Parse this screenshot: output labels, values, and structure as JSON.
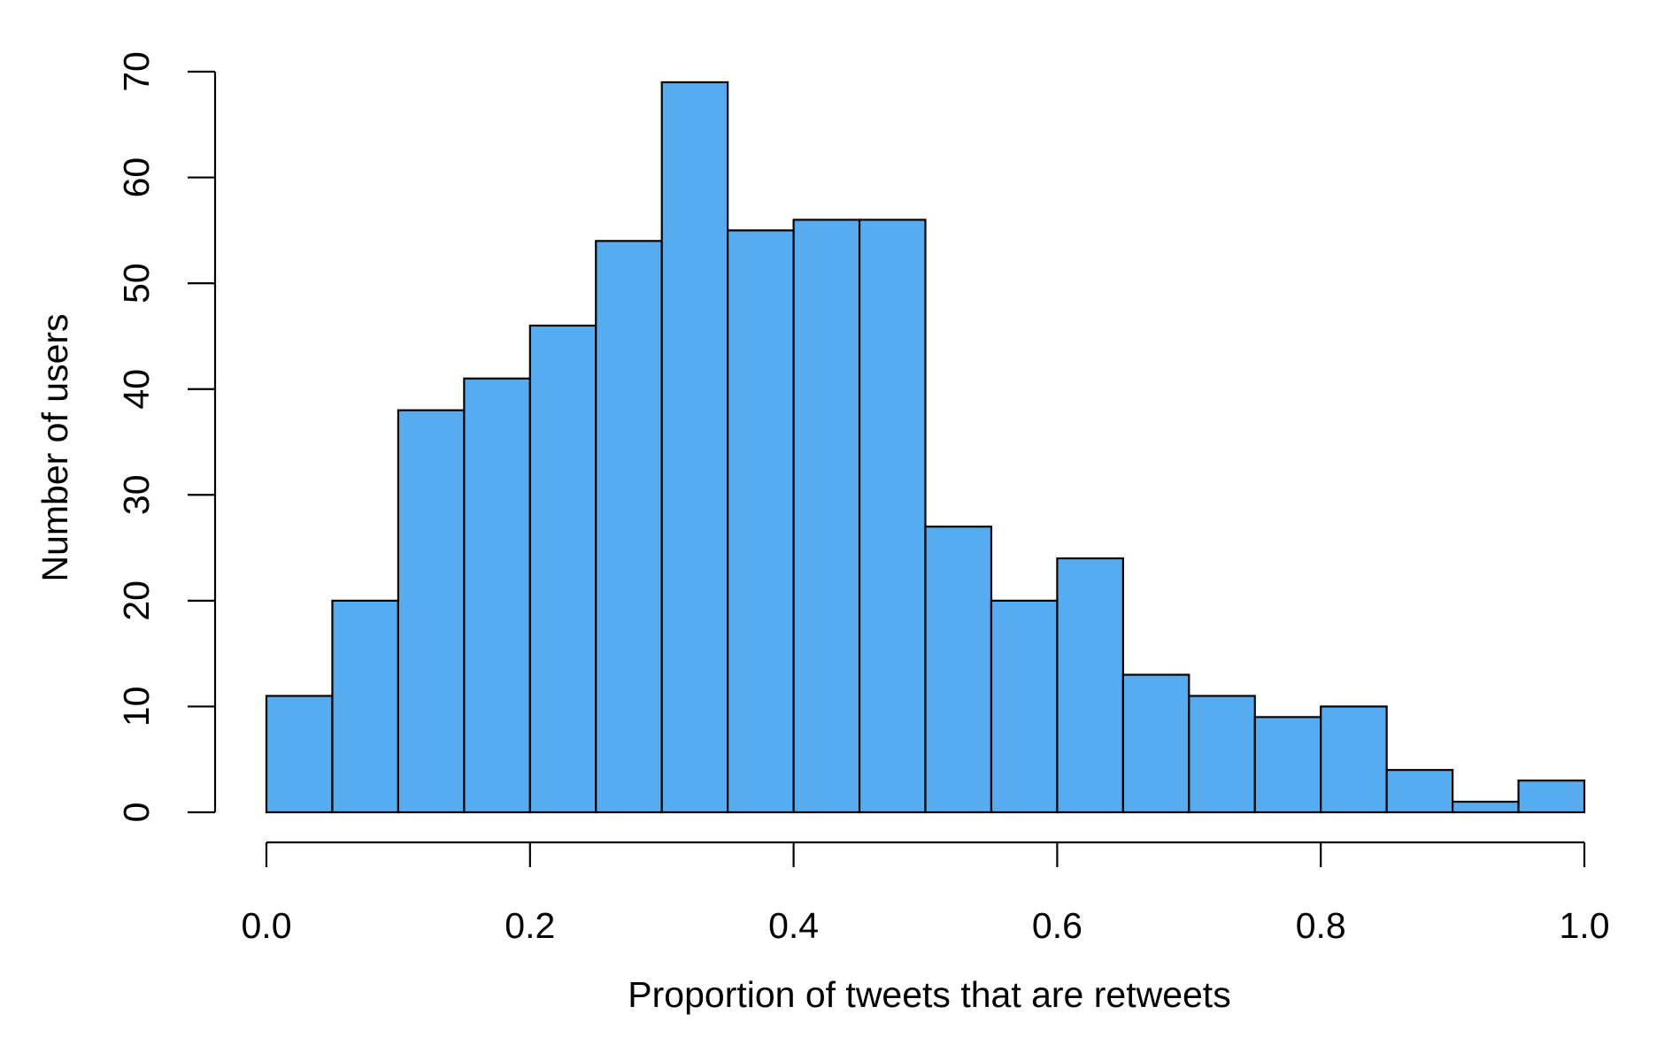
{
  "chart_data": {
    "type": "bar",
    "xlabel": "Proportion of tweets that are retweets",
    "ylabel": "Number of users",
    "bin_edges": [
      0.0,
      0.05,
      0.1,
      0.15,
      0.2,
      0.25,
      0.3,
      0.35,
      0.4,
      0.45,
      0.5,
      0.55,
      0.6,
      0.65,
      0.7,
      0.75,
      0.8,
      0.85,
      0.9,
      0.95,
      1.0
    ],
    "values": [
      11,
      20,
      38,
      41,
      46,
      54,
      69,
      55,
      56,
      56,
      27,
      20,
      24,
      13,
      11,
      9,
      10,
      4,
      1,
      3
    ],
    "xlim": [
      0,
      1
    ],
    "ylim": [
      0,
      70
    ],
    "x_ticks": [
      "0.0",
      "0.2",
      "0.4",
      "0.6",
      "0.8",
      "1.0"
    ],
    "y_ticks": [
      "0",
      "10",
      "20",
      "30",
      "40",
      "50",
      "60",
      "70"
    ],
    "grid": false,
    "bar_color": "#56ACEE"
  }
}
